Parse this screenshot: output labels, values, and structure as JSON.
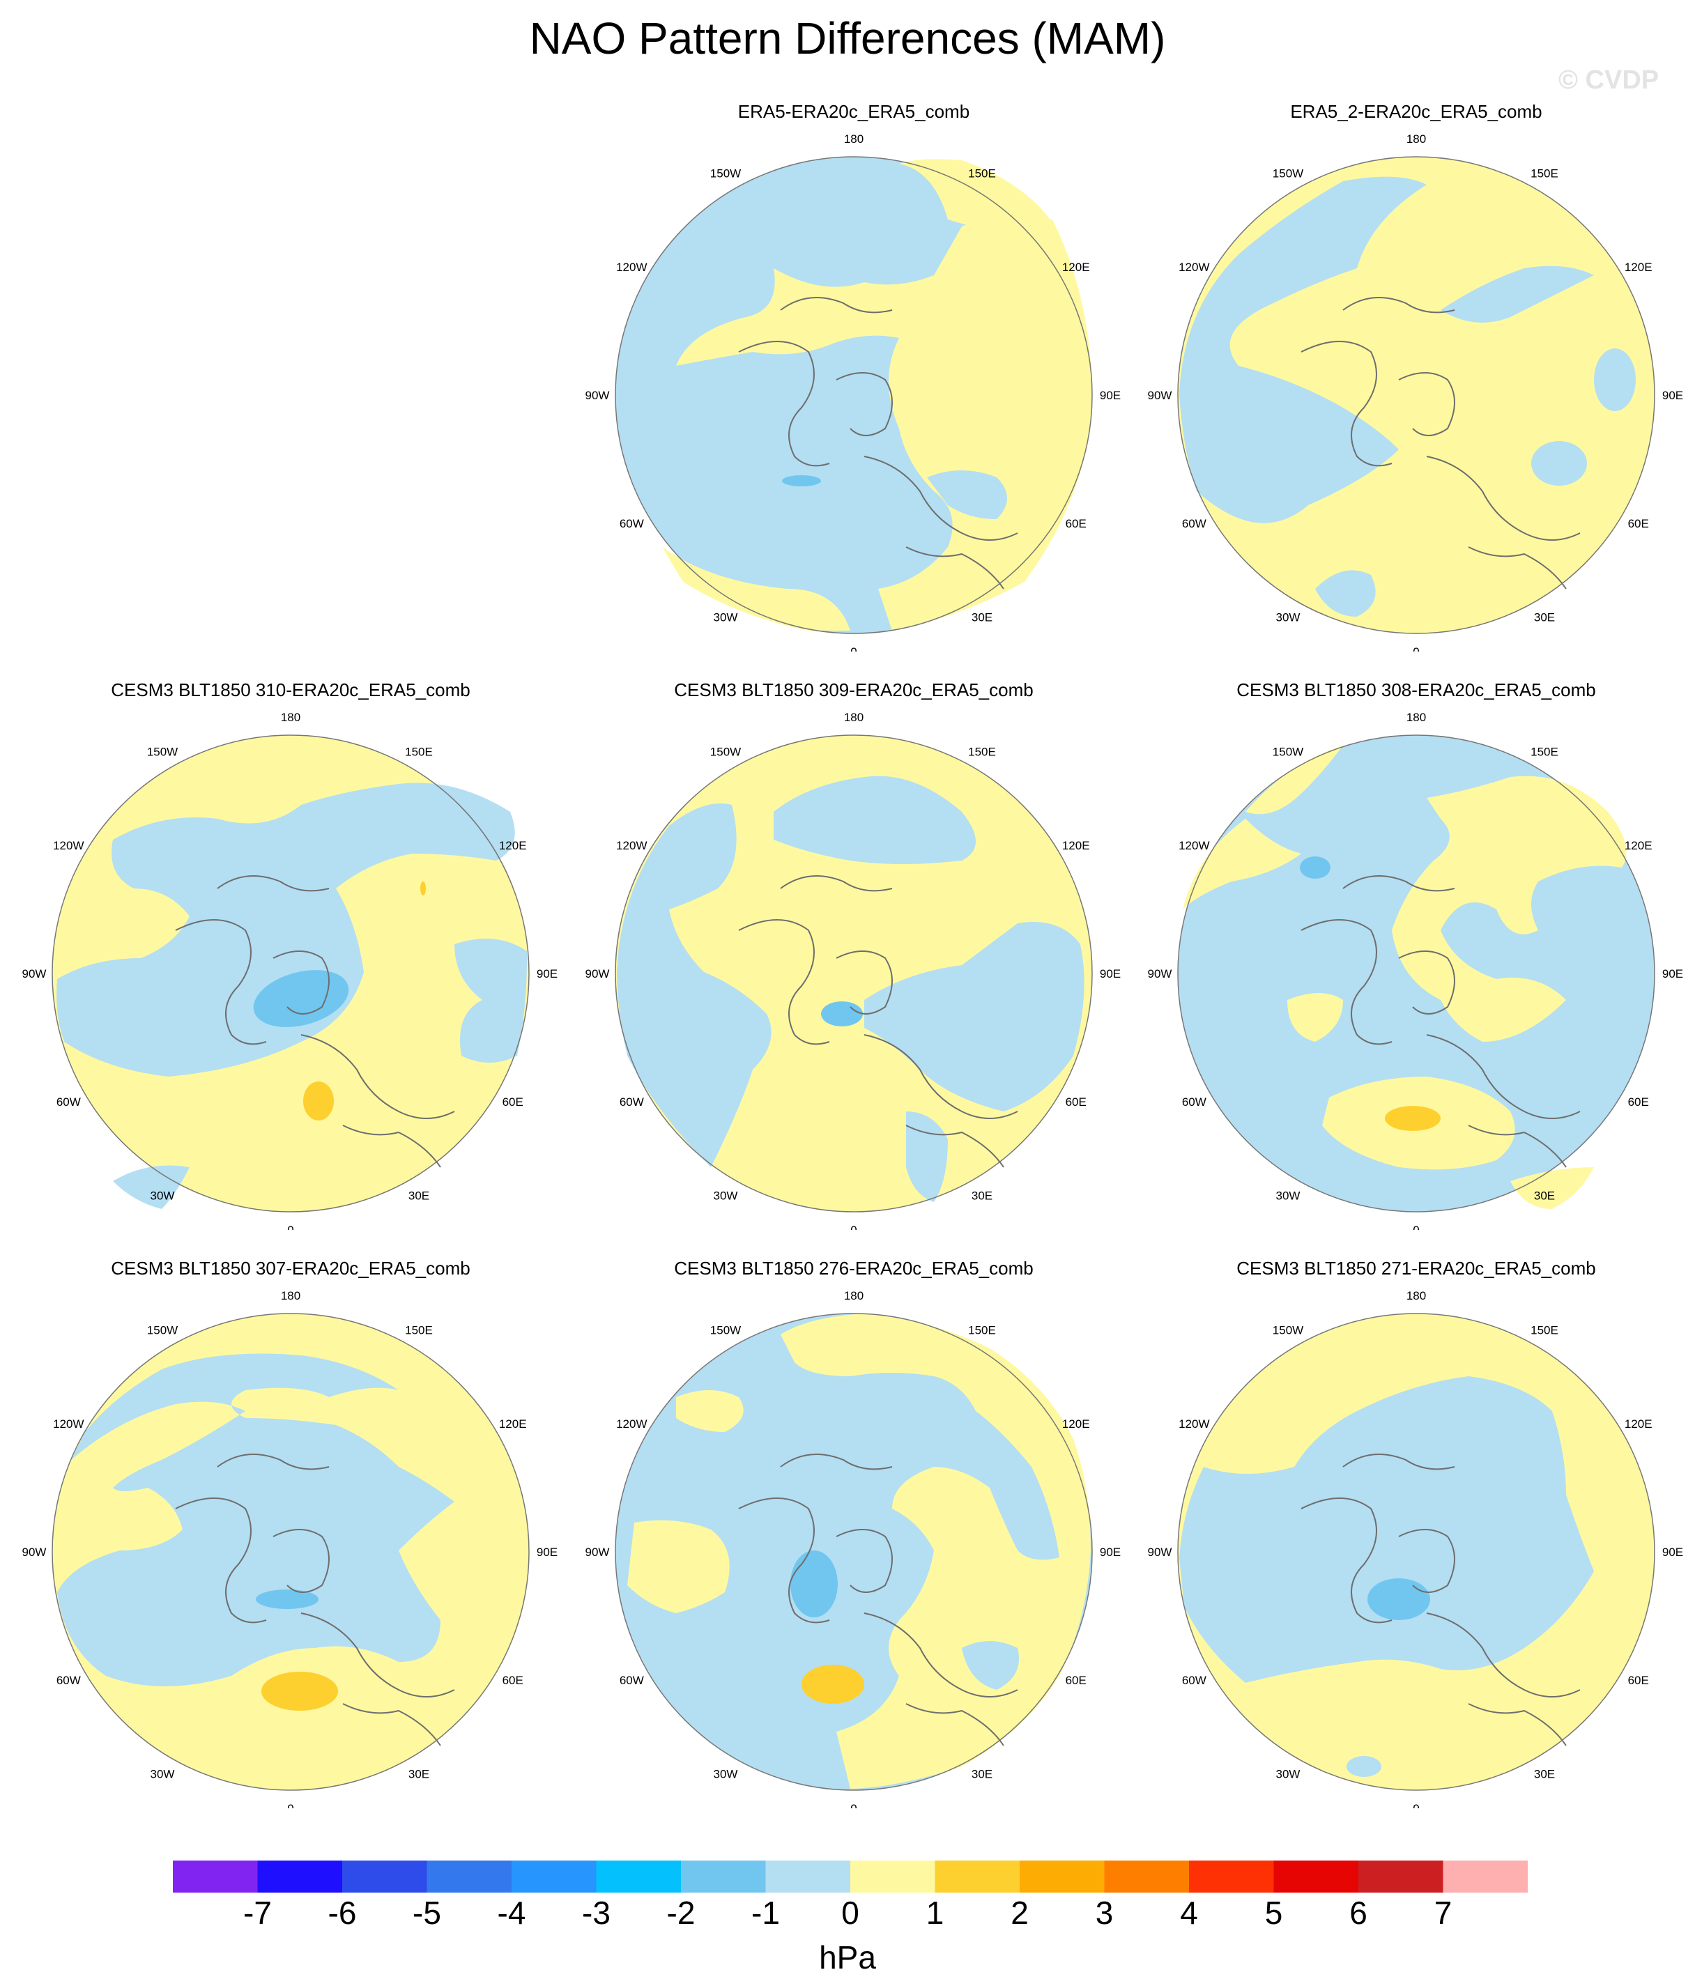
{
  "title": "NAO Pattern Differences (MAM)",
  "watermark": "© CVDP",
  "colors": {
    "ocean_land_neg": "#b4def2",
    "pos_fill": "#fef9a0",
    "neg_strong": "#71c6f0",
    "pos_strong": "#fdd02f",
    "coast": "#6e6e6e",
    "edge": "#777777"
  },
  "longitude_labels": [
    "180",
    "150E",
    "120E",
    "90E",
    "60E",
    "30E",
    "0",
    "30W",
    "60W",
    "90W",
    "120W",
    "150W"
  ],
  "panels": [
    {
      "title": "ERA5-ERA20c_ERA5_comb"
    },
    {
      "title": "ERA5_2-ERA20c_ERA5_comb"
    },
    {
      "title": "CESM3 BLT1850 310-ERA20c_ERA5_comb"
    },
    {
      "title": "CESM3 BLT1850 309-ERA20c_ERA5_comb"
    },
    {
      "title": "CESM3 BLT1850 308-ERA20c_ERA5_comb"
    },
    {
      "title": "CESM3 BLT1850 307-ERA20c_ERA5_comb"
    },
    {
      "title": "CESM3 BLT1850 276-ERA20c_ERA5_comb"
    },
    {
      "title": "CESM3 BLT1850 271-ERA20c_ERA5_comb"
    }
  ],
  "colorbar": {
    "colors": [
      "#8124f2",
      "#1f0fff",
      "#2d4ce9",
      "#3478ee",
      "#2695fd",
      "#04c1fd",
      "#71c6f0",
      "#b4def2",
      "#fef9a0",
      "#fdd02f",
      "#fdac04",
      "#fe7f00",
      "#fe3104",
      "#e70503",
      "#cb1f22",
      "#feb0b0"
    ],
    "ticks": [
      "-7",
      "-6",
      "-5",
      "-4",
      "-3",
      "-2",
      "-1",
      "0",
      "1",
      "2",
      "3",
      "4",
      "5",
      "6",
      "7"
    ],
    "units": "hPa"
  }
}
